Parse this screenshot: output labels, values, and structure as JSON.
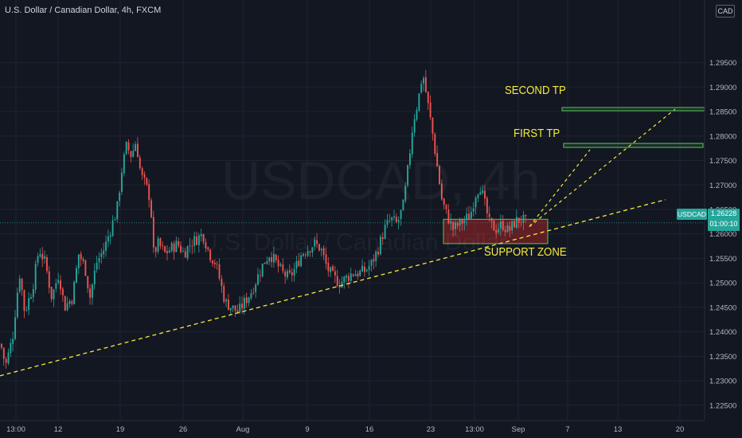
{
  "header": {
    "title": "U.S. Dollar / Canadian Dollar, 4h, FXCM",
    "currency": "CAD"
  },
  "watermark": {
    "symbol": "USDCAD, 4h",
    "description": "U.S. Dollar / Canadian Dollar"
  },
  "price_badge": {
    "symbol": "USDCAD",
    "price": "1.26228",
    "countdown": "01:00:10"
  },
  "annotations": {
    "second_tp": "SECOND TP",
    "first_tp": "FIRST TP",
    "support_zone": "SUPPORT ZONE"
  },
  "colors": {
    "background": "#131722",
    "up": "#26a69a",
    "down": "#ef5350",
    "annotation": "#f5eb3c",
    "box": "#4caf50"
  },
  "chart_data": {
    "type": "candlestick",
    "title": "U.S. Dollar / Canadian Dollar, 4h, FXCM",
    "symbol": "USDCAD",
    "x_tick_labels": [
      "13:00",
      "12",
      "19",
      "26",
      "Aug",
      "9",
      "16",
      "23",
      "13:00",
      "Sep",
      "7",
      "13",
      "20"
    ],
    "y_tick_labels": [
      "1.29500",
      "1.29000",
      "1.28500",
      "1.28000",
      "1.27500",
      "1.27000",
      "1.26500",
      "1.26000",
      "1.25500",
      "1.25000",
      "1.24500",
      "1.24000",
      "1.23500",
      "1.23000",
      "1.22500"
    ],
    "ylim": [
      1.2235,
      1.2995
    ],
    "last_price": 1.26228,
    "key_closes": [
      {
        "label": "13:00",
        "close": 1.2355
      },
      {
        "label": "12",
        "close": 1.2555
      },
      {
        "label": "19",
        "close": 1.277
      },
      {
        "label": "26",
        "close": 1.257
      },
      {
        "label": "Aug",
        "close": 1.245
      },
      {
        "label": "9",
        "close": 1.257
      },
      {
        "label": "16",
        "close": 1.252
      },
      {
        "label": "23",
        "close": 1.264
      },
      {
        "label": "13:00",
        "close": 1.262
      },
      {
        "label": "Sep",
        "close": 1.2623
      }
    ],
    "swing_highs": [
      1.2805,
      1.2945,
      1.2705
    ],
    "swing_lows": [
      1.2345,
      1.2445,
      1.2575
    ],
    "levels": [
      {
        "name": "SECOND TP",
        "value": 1.2855
      },
      {
        "name": "FIRST TP",
        "value": 1.278
      }
    ],
    "support_zone": {
      "name": "SUPPORT ZONE",
      "low": 1.259,
      "high": 1.262
    },
    "trendline": {
      "from": {
        "date": "13:00",
        "value": 1.231
      },
      "to": {
        "date": "20",
        "value": 1.267
      }
    },
    "grid": true,
    "legend": "none"
  }
}
